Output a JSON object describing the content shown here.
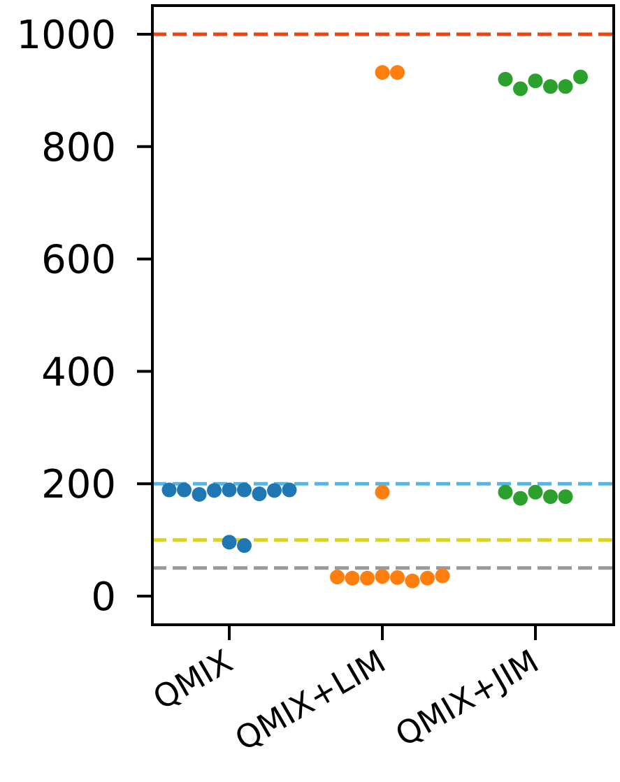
{
  "chart_data": {
    "type": "scatter",
    "subtype": "swarm",
    "title": "",
    "xlabel": "",
    "ylabel": "",
    "categories": [
      "QMIX",
      "QMIX+LIM",
      "QMIX+JIM"
    ],
    "ylim": [
      -50,
      1055
    ],
    "yticks": [
      0,
      200,
      400,
      600,
      800,
      1000
    ],
    "grid": false,
    "legend": "none",
    "reference_lines": [
      {
        "y": 1000,
        "color": "#ee4411",
        "style": "dashed"
      },
      {
        "y": 200,
        "color": "#5ab4e0",
        "style": "dashed"
      },
      {
        "y": 100,
        "color": "#d9d22a",
        "style": "dashed"
      },
      {
        "y": 50,
        "color": "#999999",
        "style": "dashed"
      }
    ],
    "series": [
      {
        "category": "QMIX",
        "color": "#1f77b4",
        "values": [
          189,
          189,
          188,
          182,
          181,
          188,
          189,
          189,
          189,
          96,
          90
        ]
      },
      {
        "category": "QMIX+LIM",
        "color": "#ff7f0e",
        "values": [
          932,
          932,
          185,
          35,
          33,
          32,
          27,
          32,
          32,
          34,
          36
        ]
      },
      {
        "category": "QMIX+JIM",
        "color": "#2ca02c",
        "values": [
          917,
          907,
          903,
          907,
          920,
          924,
          185,
          177,
          174,
          177,
          185
        ]
      }
    ]
  }
}
